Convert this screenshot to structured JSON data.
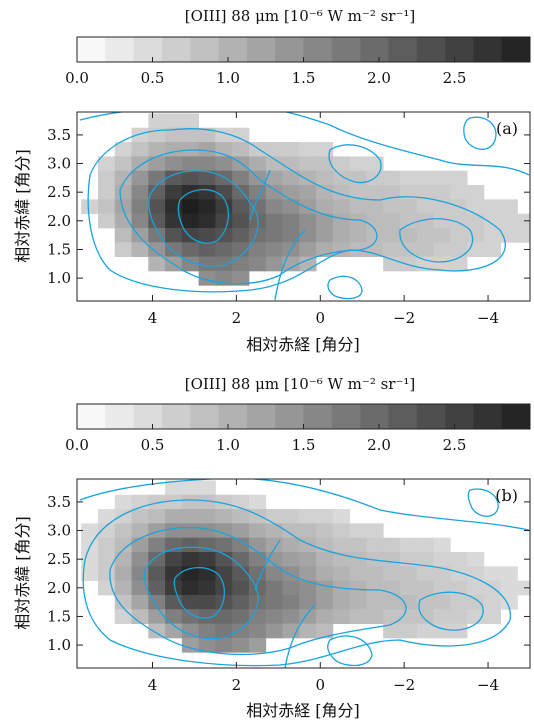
{
  "chart_data": [
    {
      "type": "heatmap",
      "panel_label": "(a)",
      "colorbar_title": "[OIII] 88 μm [10⁻⁶ W m⁻² sr⁻¹]",
      "colorbar_range": [
        0.0,
        3.0
      ],
      "colorbar_ticks": [
        "0.0",
        "0.5",
        "1.0",
        "1.5",
        "2.0",
        "2.5"
      ],
      "xlabel": "相対赤経 [角分]",
      "ylabel": "相対赤緯 [角分]",
      "x_ticks": [
        "4",
        "2",
        "0",
        "−2",
        "−4"
      ],
      "y_ticks": [
        "1.0",
        "1.5",
        "2.0",
        "2.5",
        "3.0",
        "3.5"
      ],
      "xlim": [
        5.8,
        -5.0
      ],
      "ylim": [
        0.6,
        3.9
      ],
      "cell_ra": [
        5.5,
        5.1,
        4.7,
        4.3,
        3.9,
        3.5,
        3.1,
        2.7,
        2.3,
        1.9,
        1.5,
        1.1,
        0.7,
        0.3,
        -0.1,
        -0.5,
        -0.9,
        -1.3,
        -1.7,
        -2.1,
        -2.5,
        -2.9,
        -3.3,
        -3.7,
        -4.1,
        -4.5,
        -4.9
      ],
      "cell_dec": [
        3.75,
        3.5,
        3.25,
        3.0,
        2.75,
        2.5,
        2.25,
        2.0,
        1.75,
        1.5,
        1.25,
        1.0,
        0.75
      ],
      "values": [
        [
          0,
          0,
          0,
          0,
          0.6,
          0.6,
          0.6,
          0,
          0,
          0,
          0,
          0,
          0,
          0,
          0,
          0,
          0,
          0,
          0,
          0,
          0,
          0,
          0,
          0,
          0,
          0,
          0
        ],
        [
          0,
          0,
          0,
          0.6,
          0.7,
          0.8,
          0.8,
          0.8,
          0.6,
          0.6,
          0,
          0,
          0,
          0,
          0,
          0,
          0,
          0,
          0,
          0,
          0,
          0,
          0,
          0,
          0,
          0,
          0
        ],
        [
          0,
          0,
          0.6,
          0.8,
          1.0,
          1.1,
          1.1,
          1.2,
          1.0,
          0.9,
          0.7,
          0.7,
          0.7,
          0.6,
          0.6,
          0,
          0,
          0,
          0,
          0,
          0,
          0,
          0,
          0,
          0,
          0,
          0
        ],
        [
          0,
          0.6,
          0.8,
          1.1,
          1.3,
          1.5,
          1.6,
          1.6,
          1.5,
          1.3,
          1.1,
          0.9,
          0.9,
          0.8,
          0.8,
          0.7,
          0.6,
          0.6,
          0,
          0,
          0,
          0,
          0,
          0,
          0,
          0,
          0
        ],
        [
          0,
          0.7,
          1.0,
          1.4,
          1.8,
          2.2,
          2.3,
          2.2,
          2.0,
          1.7,
          1.4,
          1.2,
          1.1,
          1.0,
          0.9,
          0.8,
          0.8,
          0.7,
          0.7,
          0.6,
          0.6,
          0.6,
          0.6,
          0,
          0,
          0,
          0
        ],
        [
          0,
          0.7,
          1.1,
          1.6,
          2.1,
          2.6,
          2.8,
          2.7,
          2.4,
          2.0,
          1.7,
          1.4,
          1.3,
          1.2,
          1.0,
          0.9,
          0.8,
          0.8,
          0.8,
          0.7,
          0.7,
          0.7,
          0.6,
          0.6,
          0,
          0,
          0
        ],
        [
          0.6,
          0.8,
          1.2,
          1.7,
          2.3,
          2.8,
          3.0,
          2.9,
          2.6,
          2.2,
          1.9,
          1.6,
          1.5,
          1.3,
          1.1,
          1.0,
          0.9,
          0.9,
          0.8,
          0.8,
          0.7,
          0.7,
          0.7,
          0.6,
          0.6,
          0.6,
          0
        ],
        [
          0,
          0.7,
          1.1,
          1.6,
          2.2,
          2.7,
          2.9,
          2.8,
          2.5,
          2.3,
          2.0,
          1.8,
          1.7,
          1.5,
          1.3,
          1.1,
          1.0,
          0.9,
          0.9,
          0.8,
          0.8,
          0.7,
          0.7,
          0.7,
          0.6,
          0.6,
          0.6
        ],
        [
          0,
          0,
          0.9,
          1.3,
          1.8,
          2.3,
          2.5,
          2.4,
          2.3,
          2.1,
          1.9,
          1.8,
          1.7,
          1.5,
          1.3,
          1.1,
          1.0,
          0.9,
          0.9,
          0.9,
          0.8,
          0.8,
          0.7,
          0.7,
          0.6,
          0.6,
          0.6
        ],
        [
          0,
          0,
          0.7,
          1.0,
          1.4,
          1.8,
          2.0,
          2.1,
          2.0,
          1.9,
          1.7,
          1.6,
          1.5,
          1.3,
          1.1,
          1.0,
          0.9,
          0.9,
          0.8,
          0.8,
          0.8,
          0.7,
          0.7,
          0.6,
          0.6,
          0,
          0
        ],
        [
          0,
          0,
          0,
          0,
          1.0,
          1.3,
          1.6,
          1.8,
          1.8,
          1.7,
          1.6,
          1.4,
          1.2,
          1.0,
          0,
          0,
          0,
          0,
          0.7,
          0.7,
          0.6,
          0.6,
          0.6,
          0,
          0,
          0,
          0
        ],
        [
          0,
          0,
          0,
          0,
          0,
          0,
          0,
          1.5,
          1.6,
          1.5,
          0,
          0,
          0,
          0,
          0,
          0,
          0,
          0,
          0,
          0,
          0,
          0,
          0,
          0,
          0,
          0,
          0
        ],
        [
          0,
          0,
          0,
          0,
          0,
          0,
          0,
          0,
          0,
          0,
          0,
          0,
          0,
          0,
          0,
          0,
          0,
          0,
          0,
          0,
          0,
          0,
          0,
          0,
          0,
          0,
          0
        ]
      ]
    },
    {
      "type": "heatmap",
      "panel_label": "(b)",
      "colorbar_title": "[OIII] 88 μm [10⁻⁶ W m⁻² sr⁻¹]",
      "colorbar_range": [
        0.0,
        3.0
      ],
      "colorbar_ticks": [
        "0.0",
        "0.5",
        "1.0",
        "1.5",
        "2.0",
        "2.5"
      ],
      "xlabel": "相対赤経 [角分]",
      "ylabel": "相対赤緯 [角分]",
      "x_ticks": [
        "4",
        "2",
        "0",
        "−2",
        "−4"
      ],
      "y_ticks": [
        "1.0",
        "1.5",
        "2.0",
        "2.5",
        "3.0",
        "3.5"
      ],
      "xlim": [
        5.8,
        -5.0
      ],
      "ylim": [
        0.6,
        3.9
      ],
      "cell_ra": [
        5.5,
        5.1,
        4.7,
        4.3,
        3.9,
        3.5,
        3.1,
        2.7,
        2.3,
        1.9,
        1.5,
        1.1,
        0.7,
        0.3,
        -0.1,
        -0.5,
        -0.9,
        -1.3,
        -1.7,
        -2.1,
        -2.5,
        -2.9,
        -3.3,
        -3.7,
        -4.1,
        -4.5,
        -4.9
      ],
      "cell_dec": [
        3.75,
        3.5,
        3.25,
        3.0,
        2.75,
        2.5,
        2.25,
        2.0,
        1.75,
        1.5,
        1.25,
        1.0,
        0.75
      ],
      "values": [
        [
          0,
          0,
          0,
          0,
          0,
          0.5,
          0.5,
          0.5,
          0,
          0,
          0,
          0,
          0,
          0,
          0,
          0,
          0,
          0,
          0,
          0,
          0,
          0,
          0,
          0,
          0,
          0,
          0
        ],
        [
          0,
          0,
          0.5,
          0.6,
          0.7,
          0.7,
          0.8,
          0.8,
          0.7,
          0.6,
          0.5,
          0,
          0,
          0,
          0,
          0,
          0,
          0,
          0,
          0,
          0,
          0,
          0,
          0,
          0,
          0,
          0
        ],
        [
          0,
          0.5,
          0.6,
          0.8,
          0.9,
          1.1,
          1.1,
          1.1,
          1.0,
          0.9,
          0.8,
          0.7,
          0.7,
          0.6,
          0.6,
          0.5,
          0,
          0,
          0,
          0,
          0,
          0,
          0,
          0,
          0,
          0,
          0
        ],
        [
          0.5,
          0.6,
          0.8,
          1.0,
          1.3,
          1.5,
          1.5,
          1.5,
          1.4,
          1.3,
          1.1,
          1.0,
          0.9,
          0.9,
          0.8,
          0.7,
          0.6,
          0.6,
          0,
          0,
          0,
          0,
          0,
          0,
          0,
          0,
          0
        ],
        [
          0.5,
          0.7,
          0.9,
          1.3,
          1.7,
          2.0,
          2.1,
          2.0,
          1.9,
          1.7,
          1.4,
          1.2,
          1.1,
          1.0,
          0.9,
          0.8,
          0.8,
          0.7,
          0.7,
          0.6,
          0.6,
          0.5,
          0,
          0,
          0,
          0,
          0
        ],
        [
          0.5,
          0.7,
          1.0,
          1.5,
          2.0,
          2.5,
          2.7,
          2.6,
          2.3,
          2.0,
          1.7,
          1.4,
          1.3,
          1.2,
          1.0,
          0.9,
          0.9,
          0.8,
          0.8,
          0.7,
          0.7,
          0.6,
          0.6,
          0.5,
          0,
          0,
          0
        ],
        [
          0.5,
          0.7,
          1.1,
          1.6,
          2.2,
          2.7,
          2.9,
          2.8,
          2.5,
          2.2,
          1.9,
          1.6,
          1.5,
          1.3,
          1.1,
          1.0,
          0.9,
          0.9,
          0.8,
          0.8,
          0.7,
          0.7,
          0.6,
          0.6,
          0.5,
          0.5,
          0
        ],
        [
          0,
          0.6,
          1.0,
          1.5,
          2.1,
          2.6,
          2.8,
          2.7,
          2.5,
          2.3,
          2.0,
          1.8,
          1.6,
          1.5,
          1.3,
          1.1,
          1.0,
          0.9,
          0.9,
          0.8,
          0.8,
          0.7,
          0.7,
          0.6,
          0.6,
          0.5,
          0.5
        ],
        [
          0,
          0,
          0.8,
          1.2,
          1.7,
          2.2,
          2.4,
          2.4,
          2.3,
          2.1,
          1.9,
          1.8,
          1.7,
          1.5,
          1.3,
          1.1,
          1.0,
          0.9,
          0.9,
          0.9,
          0.8,
          0.8,
          0.7,
          0.7,
          0.6,
          0.5,
          0
        ],
        [
          0,
          0,
          0.6,
          0.9,
          1.3,
          1.7,
          1.9,
          2.0,
          2.0,
          1.9,
          1.7,
          1.6,
          1.5,
          1.3,
          1.1,
          1.0,
          0.9,
          0.9,
          0.8,
          0.8,
          0.8,
          0.7,
          0.7,
          0.6,
          0.6,
          0,
          0
        ],
        [
          0,
          0,
          0,
          0,
          0.9,
          1.2,
          1.5,
          1.7,
          1.8,
          1.7,
          1.6,
          1.4,
          1.2,
          1.0,
          0.9,
          0,
          0,
          0,
          0.7,
          0.7,
          0.6,
          0.6,
          0.6,
          0,
          0,
          0,
          0
        ],
        [
          0,
          0,
          0,
          0,
          0,
          0,
          1.3,
          1.5,
          1.6,
          1.5,
          1.3,
          0,
          0,
          0,
          0,
          0,
          0,
          0,
          0,
          0,
          0,
          0,
          0,
          0,
          0,
          0,
          0
        ],
        [
          0,
          0,
          0,
          0,
          0,
          0,
          0,
          0,
          0,
          0,
          0,
          0,
          0,
          0,
          0,
          0,
          0,
          0,
          0,
          0,
          0,
          0,
          0,
          0,
          0,
          0,
          0
        ]
      ]
    }
  ],
  "contour_color": "#1aa3de"
}
